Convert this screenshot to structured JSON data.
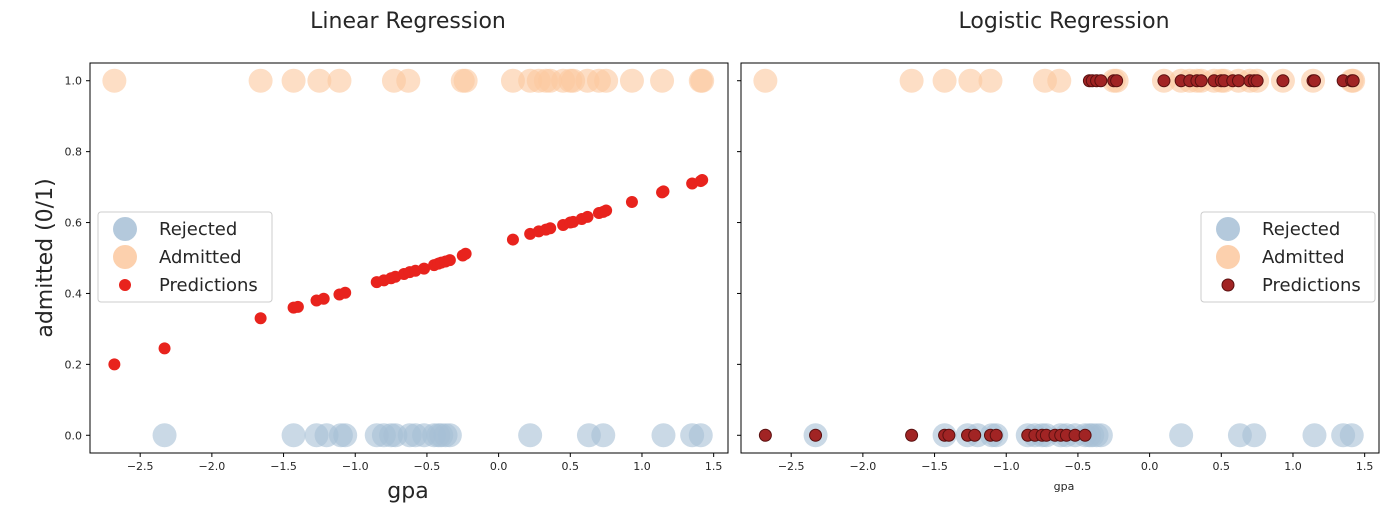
{
  "colors": {
    "rejected": "#a7bfd6",
    "admitted": "#fcc89f",
    "linear_predictions": "#e8231d",
    "logistic_predictions": "#a12424",
    "logistic_predictions_edge": "#5a1010"
  },
  "chart_data": [
    {
      "type": "scatter",
      "title": "Linear Regression",
      "xlabel": "gpa",
      "ylabel": "admitted (0/1)",
      "xlim": [
        -2.85,
        1.6
      ],
      "ylim": [
        -0.05,
        1.05
      ],
      "xticks": [
        -2.5,
        -2.0,
        -1.5,
        -1.0,
        -0.5,
        0.0,
        0.5,
        1.0,
        1.5
      ],
      "xtick_labels": [
        "−2.5",
        "−2.0",
        "−1.5",
        "−1.0",
        "−0.5",
        "0.0",
        "0.5",
        "1.0",
        "1.5"
      ],
      "yticks": [
        0.0,
        0.2,
        0.4,
        0.6,
        0.8,
        1.0
      ],
      "ytick_labels": [
        "0.0",
        "0.2",
        "0.4",
        "0.6",
        "0.8",
        "1.0"
      ],
      "grid": false,
      "legend": {
        "position": "center-left",
        "entries": [
          "Rejected",
          "Admitted",
          "Predictions"
        ]
      },
      "series": [
        {
          "name": "Rejected",
          "x": [
            -2.33,
            -1.43,
            -1.27,
            -1.2,
            -1.1,
            -1.07,
            -0.85,
            -0.8,
            -0.75,
            -0.72,
            -0.62,
            -0.58,
            -0.52,
            -0.45,
            -0.42,
            -0.4,
            -0.37,
            -0.34,
            0.22,
            0.63,
            0.73,
            1.15,
            1.35,
            1.41
          ],
          "y": [
            0,
            0,
            0,
            0,
            0,
            0,
            0,
            0,
            0,
            0,
            0,
            0,
            0,
            0,
            0,
            0,
            0,
            0,
            0,
            0,
            0,
            0,
            0,
            0
          ]
        },
        {
          "name": "Admitted",
          "x": [
            -2.68,
            -1.66,
            -1.43,
            -1.25,
            -1.11,
            -0.73,
            -0.63,
            -0.25,
            -0.23,
            0.1,
            0.22,
            0.28,
            0.33,
            0.36,
            0.45,
            0.5,
            0.52,
            0.62,
            0.7,
            0.75,
            0.93,
            1.14,
            1.41,
            1.42
          ],
          "y": [
            1,
            1,
            1,
            1,
            1,
            1,
            1,
            1,
            1,
            1,
            1,
            1,
            1,
            1,
            1,
            1,
            1,
            1,
            1,
            1,
            1,
            1,
            1,
            1
          ]
        },
        {
          "name": "Predictions",
          "x": [
            -2.68,
            -2.33,
            -1.66,
            -1.43,
            -1.4,
            -1.27,
            -1.22,
            -1.11,
            -1.07,
            -0.85,
            -0.8,
            -0.75,
            -0.72,
            -0.66,
            -0.62,
            -0.58,
            -0.52,
            -0.45,
            -0.42,
            -0.4,
            -0.37,
            -0.34,
            -0.25,
            -0.23,
            0.1,
            0.22,
            0.28,
            0.33,
            0.36,
            0.45,
            0.5,
            0.52,
            0.58,
            0.62,
            0.7,
            0.73,
            0.75,
            0.93,
            1.14,
            1.15,
            1.35,
            1.41,
            1.42
          ],
          "y": [
            0.2,
            0.245,
            0.33,
            0.36,
            0.362,
            0.38,
            0.385,
            0.397,
            0.402,
            0.432,
            0.437,
            0.443,
            0.447,
            0.455,
            0.46,
            0.464,
            0.47,
            0.48,
            0.484,
            0.487,
            0.49,
            0.494,
            0.507,
            0.512,
            0.552,
            0.568,
            0.575,
            0.58,
            0.584,
            0.593,
            0.6,
            0.602,
            0.61,
            0.616,
            0.627,
            0.63,
            0.634,
            0.658,
            0.685,
            0.688,
            0.71,
            0.717,
            0.72
          ]
        }
      ]
    },
    {
      "type": "scatter",
      "title": "Logistic Regression",
      "xlabel": "gpa",
      "ylabel": "",
      "xlim": [
        -2.85,
        1.6
      ],
      "ylim": [
        -0.05,
        1.05
      ],
      "xticks": [
        -2.5,
        -2.0,
        -1.5,
        -1.0,
        -0.5,
        0.0,
        0.5,
        1.0,
        1.5
      ],
      "xtick_labels": [
        "−2.5",
        "−2.0",
        "−1.5",
        "−1.0",
        "−0.5",
        "0.0",
        "0.5",
        "1.0",
        "1.5"
      ],
      "yticks": [
        0.0,
        0.2,
        0.4,
        0.6,
        0.8,
        1.0
      ],
      "ytick_labels": [],
      "grid": false,
      "legend": {
        "position": "center-right",
        "entries": [
          "Rejected",
          "Admitted",
          "Predictions"
        ]
      },
      "series": [
        {
          "name": "Rejected",
          "x": [
            -2.33,
            -1.43,
            -1.27,
            -1.2,
            -1.1,
            -1.07,
            -0.85,
            -0.8,
            -0.75,
            -0.72,
            -0.62,
            -0.58,
            -0.52,
            -0.45,
            -0.42,
            -0.4,
            -0.37,
            -0.34,
            0.22,
            0.63,
            0.73,
            1.15,
            1.35,
            1.41
          ],
          "y": [
            0,
            0,
            0,
            0,
            0,
            0,
            0,
            0,
            0,
            0,
            0,
            0,
            0,
            0,
            0,
            0,
            0,
            0,
            0,
            0,
            0,
            0,
            0,
            0
          ]
        },
        {
          "name": "Admitted",
          "x": [
            -2.68,
            -1.66,
            -1.43,
            -1.25,
            -1.11,
            -0.73,
            -0.63,
            -0.25,
            -0.23,
            0.1,
            0.22,
            0.28,
            0.33,
            0.36,
            0.45,
            0.5,
            0.52,
            0.62,
            0.7,
            0.75,
            0.93,
            1.14,
            1.41,
            1.42
          ],
          "y": [
            1,
            1,
            1,
            1,
            1,
            1,
            1,
            1,
            1,
            1,
            1,
            1,
            1,
            1,
            1,
            1,
            1,
            1,
            1,
            1,
            1,
            1,
            1,
            1
          ]
        },
        {
          "name": "Predictions",
          "x": [
            -2.68,
            -2.33,
            -1.66,
            -1.43,
            -1.4,
            -1.27,
            -1.22,
            -1.11,
            -1.07,
            -0.85,
            -0.8,
            -0.75,
            -0.72,
            -0.66,
            -0.62,
            -0.58,
            -0.52,
            -0.45,
            -0.42,
            -0.4,
            -0.37,
            -0.34,
            -0.25,
            -0.23,
            0.1,
            0.22,
            0.28,
            0.33,
            0.36,
            0.45,
            0.5,
            0.52,
            0.58,
            0.62,
            0.7,
            0.73,
            0.75,
            0.93,
            1.14,
            1.15,
            1.35,
            1.41,
            1.42
          ],
          "y": [
            0,
            0,
            0,
            0,
            0,
            0,
            0,
            0,
            0,
            0,
            0,
            0,
            0,
            0,
            0,
            0,
            0,
            0,
            1,
            1,
            1,
            1,
            1,
            1,
            1,
            1,
            1,
            1,
            1,
            1,
            1,
            1,
            1,
            1,
            1,
            1,
            1,
            1,
            1,
            1,
            1,
            1,
            1
          ]
        }
      ]
    }
  ]
}
